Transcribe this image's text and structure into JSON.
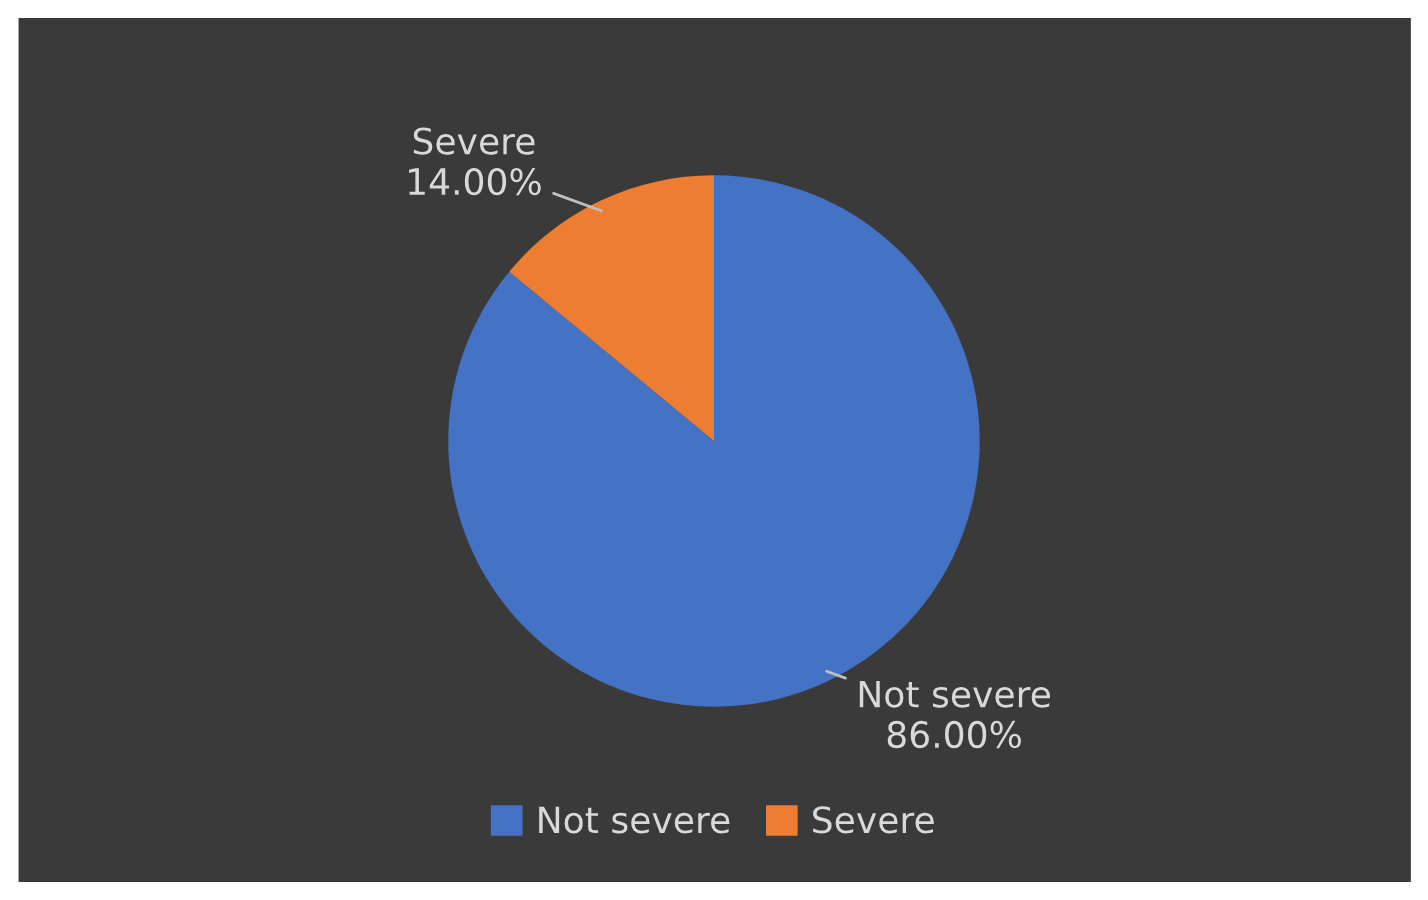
{
  "chart_data": {
    "type": "pie",
    "categories": [
      "Not severe",
      "Severe"
    ],
    "values": [
      86,
      14
    ],
    "colors": [
      "#4472c4",
      "#ed7d31"
    ],
    "value_labels": [
      "86.00%",
      "14.00%"
    ],
    "legend": "bottom"
  }
}
